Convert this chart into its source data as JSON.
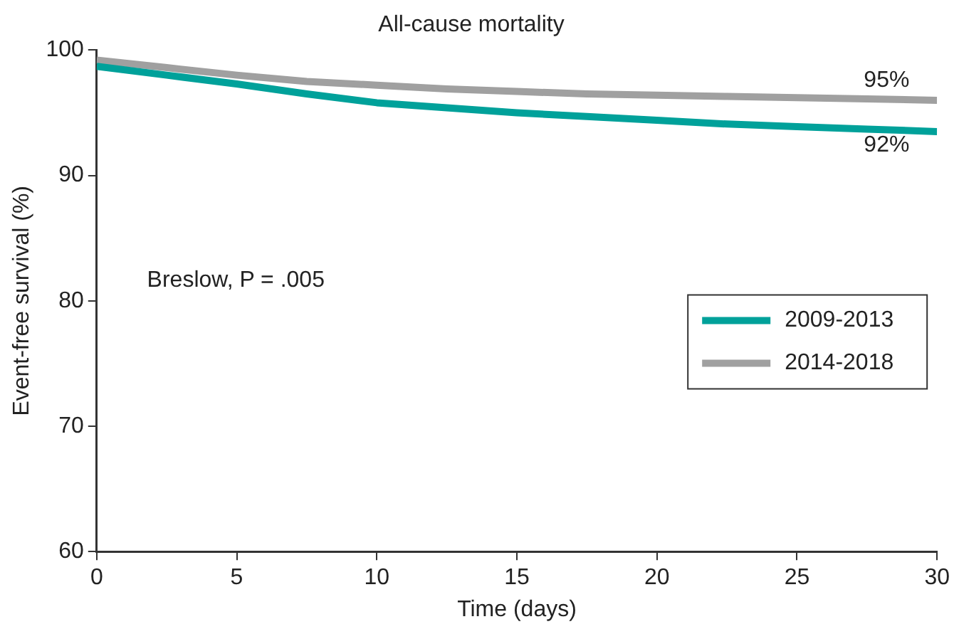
{
  "chart_data": {
    "type": "line",
    "title": "All-cause mortality",
    "xlabel": "Time (days)",
    "ylabel": "Event-free survival (%)",
    "x": [
      0,
      2.5,
      5,
      7.5,
      10,
      12.5,
      15,
      17.5,
      20,
      22.5,
      25,
      27.5,
      30
    ],
    "series": [
      {
        "name": "2009-2013",
        "color": "#00a19a",
        "values": [
          98.7,
          98.0,
          97.3,
          96.5,
          95.8,
          95.4,
          95.0,
          94.7,
          94.4,
          94.1,
          93.9,
          93.7,
          93.5
        ]
      },
      {
        "name": "2014-2018",
        "color": "#a0a0a0",
        "values": [
          99.2,
          98.6,
          98.0,
          97.5,
          97.2,
          96.9,
          96.7,
          96.5,
          96.4,
          96.3,
          96.2,
          96.1,
          96.0
        ]
      }
    ],
    "xlim": [
      0,
      30
    ],
    "xticks": [
      0,
      5,
      10,
      15,
      20,
      25,
      30
    ],
    "ylim": [
      60,
      100
    ],
    "yticks": [
      60,
      70,
      80,
      90,
      100
    ],
    "grid": false,
    "legend": "right",
    "marker": "none",
    "line_style": "solid",
    "annotations": [
      "95%",
      "92%",
      "Breslow, P = .005"
    ]
  }
}
